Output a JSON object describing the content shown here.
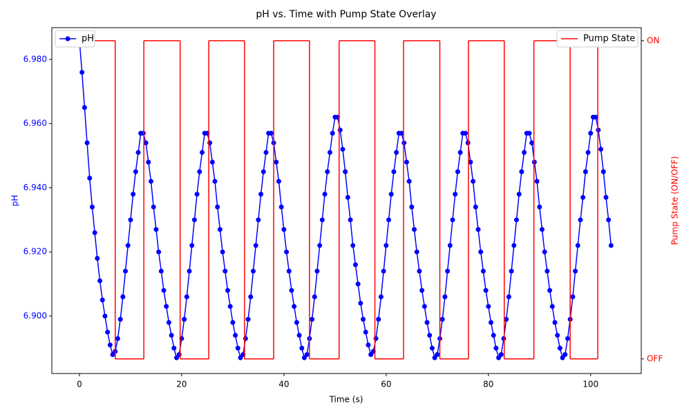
{
  "chart_data": {
    "type": "line",
    "title": "pH vs. Time with Pump State Overlay",
    "x_label": "Time (s)",
    "y_label": "pH",
    "y2_label": "Pump State (ON/OFF)",
    "xlim": [
      -5.4,
      109.9
    ],
    "xticks": [
      0,
      20,
      40,
      60,
      80,
      100
    ],
    "ylim": [
      6.8821,
      6.9899
    ],
    "yticks": [
      {
        "value": 6.9,
        "label": "6.900"
      },
      {
        "value": 6.92,
        "label": "6.920"
      },
      {
        "value": 6.94,
        "label": "6.940"
      },
      {
        "value": 6.96,
        "label": "6.960"
      },
      {
        "value": 6.98,
        "label": "6.980"
      }
    ],
    "y2lim": [
      -0.046,
      1.041
    ],
    "y2ticks": [
      {
        "value": 0,
        "label": "OFF"
      },
      {
        "value": 1,
        "label": "ON"
      }
    ],
    "series": [
      {
        "name": "pH",
        "color": "#0000ff",
        "marker": true,
        "x": [
          0,
          0.5,
          1,
          1.5,
          2,
          2.5,
          3,
          3.5,
          4,
          4.5,
          5,
          5.5,
          6,
          6.5,
          7,
          7.5,
          8,
          8.5,
          9,
          9.5,
          10,
          10.5,
          11,
          11.5,
          12,
          12.5,
          13,
          13.5,
          14,
          14.5,
          15,
          15.5,
          16,
          16.5,
          17,
          17.5,
          18,
          18.5,
          19,
          19.5,
          20,
          20.5,
          21,
          21.5,
          22,
          22.5,
          23,
          23.5,
          24,
          24.5,
          25,
          25.5,
          26,
          26.5,
          27,
          27.5,
          28,
          28.5,
          29,
          29.5,
          30,
          30.5,
          31,
          31.5,
          32,
          32.5,
          33,
          33.5,
          34,
          34.5,
          35,
          35.5,
          36,
          36.5,
          37,
          37.5,
          38,
          38.5,
          39,
          39.5,
          40,
          40.5,
          41,
          41.5,
          42,
          42.5,
          43,
          43.5,
          44,
          44.5,
          45,
          45.5,
          46,
          46.5,
          47,
          47.5,
          48,
          48.5,
          49,
          49.5,
          50,
          50.5,
          51,
          51.5,
          52,
          52.5,
          53,
          53.5,
          54,
          54.5,
          55,
          55.5,
          56,
          56.5,
          57,
          57.5,
          58,
          58.5,
          59,
          59.5,
          60,
          60.5,
          61,
          61.5,
          62,
          62.5,
          63,
          63.5,
          64,
          64.5,
          65,
          65.5,
          66,
          66.5,
          67,
          67.5,
          68,
          68.5,
          69,
          69.5,
          70,
          70.5,
          71,
          71.5,
          72,
          72.5,
          73,
          73.5,
          74,
          74.5,
          75,
          75.5,
          76,
          76.5,
          77,
          77.5,
          78,
          78.5,
          79,
          79.5,
          80,
          80.5,
          81,
          81.5,
          82,
          82.5,
          83,
          83.5,
          84,
          84.5,
          85,
          85.5,
          86,
          86.5,
          87,
          87.5,
          88,
          88.5,
          89,
          89.5,
          90,
          90.5,
          91,
          91.5,
          92,
          92.5,
          93,
          93.5,
          94,
          94.5,
          95,
          95.5,
          96,
          96.5,
          97,
          97.5,
          98,
          98.5,
          99,
          99.5,
          100,
          100.5,
          101,
          101.5,
          102,
          102.5,
          103,
          103.5,
          104
        ],
        "values": [
          6.986,
          6.976,
          6.965,
          6.954,
          6.943,
          6.934,
          6.926,
          6.918,
          6.911,
          6.905,
          6.9,
          6.895,
          6.891,
          6.888,
          6.889,
          6.893,
          6.899,
          6.906,
          6.914,
          6.922,
          6.93,
          6.938,
          6.945,
          6.951,
          6.957,
          6.957,
          6.954,
          6.948,
          6.942,
          6.934,
          6.927,
          6.92,
          6.914,
          6.908,
          6.903,
          6.898,
          6.894,
          6.89,
          6.887,
          6.888,
          6.893,
          6.899,
          6.906,
          6.914,
          6.922,
          6.93,
          6.938,
          6.945,
          6.951,
          6.957,
          6.957,
          6.954,
          6.948,
          6.942,
          6.934,
          6.927,
          6.92,
          6.914,
          6.908,
          6.903,
          6.898,
          6.894,
          6.89,
          6.887,
          6.888,
          6.893,
          6.899,
          6.906,
          6.914,
          6.922,
          6.93,
          6.938,
          6.945,
          6.951,
          6.957,
          6.957,
          6.954,
          6.948,
          6.942,
          6.934,
          6.927,
          6.92,
          6.914,
          6.908,
          6.903,
          6.898,
          6.894,
          6.89,
          6.887,
          6.888,
          6.893,
          6.899,
          6.906,
          6.914,
          6.922,
          6.93,
          6.938,
          6.945,
          6.951,
          6.957,
          6.962,
          6.962,
          6.958,
          6.952,
          6.945,
          6.937,
          6.93,
          6.922,
          6.916,
          6.91,
          6.904,
          6.899,
          6.895,
          6.891,
          6.888,
          6.889,
          6.893,
          6.899,
          6.906,
          6.914,
          6.922,
          6.93,
          6.938,
          6.945,
          6.951,
          6.957,
          6.957,
          6.954,
          6.948,
          6.942,
          6.934,
          6.927,
          6.92,
          6.914,
          6.908,
          6.903,
          6.898,
          6.894,
          6.89,
          6.887,
          6.888,
          6.893,
          6.899,
          6.906,
          6.914,
          6.922,
          6.93,
          6.938,
          6.945,
          6.951,
          6.957,
          6.957,
          6.954,
          6.948,
          6.942,
          6.934,
          6.927,
          6.92,
          6.914,
          6.908,
          6.903,
          6.898,
          6.894,
          6.89,
          6.887,
          6.888,
          6.893,
          6.899,
          6.906,
          6.914,
          6.922,
          6.93,
          6.938,
          6.945,
          6.951,
          6.957,
          6.957,
          6.954,
          6.948,
          6.942,
          6.934,
          6.927,
          6.92,
          6.914,
          6.908,
          6.903,
          6.898,
          6.894,
          6.89,
          6.887,
          6.888,
          6.893,
          6.899,
          6.906,
          6.914,
          6.922,
          6.93,
          6.937,
          6.945,
          6.951,
          6.957,
          6.962,
          6.962,
          6.958,
          6.952,
          6.945,
          6.937,
          6.93,
          6.922
        ]
      },
      {
        "name": "Pump State",
        "color": "#ff0000",
        "axis": "y2",
        "step": true,
        "x": [
          0,
          7,
          12.6,
          19.7,
          25.3,
          32.3,
          38,
          45,
          50.8,
          57.8,
          63.4,
          70.5,
          76.1,
          83.1,
          88.9,
          96,
          101.4
        ],
        "values": [
          1,
          0,
          1,
          0,
          1,
          0,
          1,
          0,
          1,
          0,
          1,
          0,
          1,
          0,
          1,
          0,
          1
        ]
      }
    ],
    "legend": [
      "upper left",
      "upper right"
    ]
  }
}
